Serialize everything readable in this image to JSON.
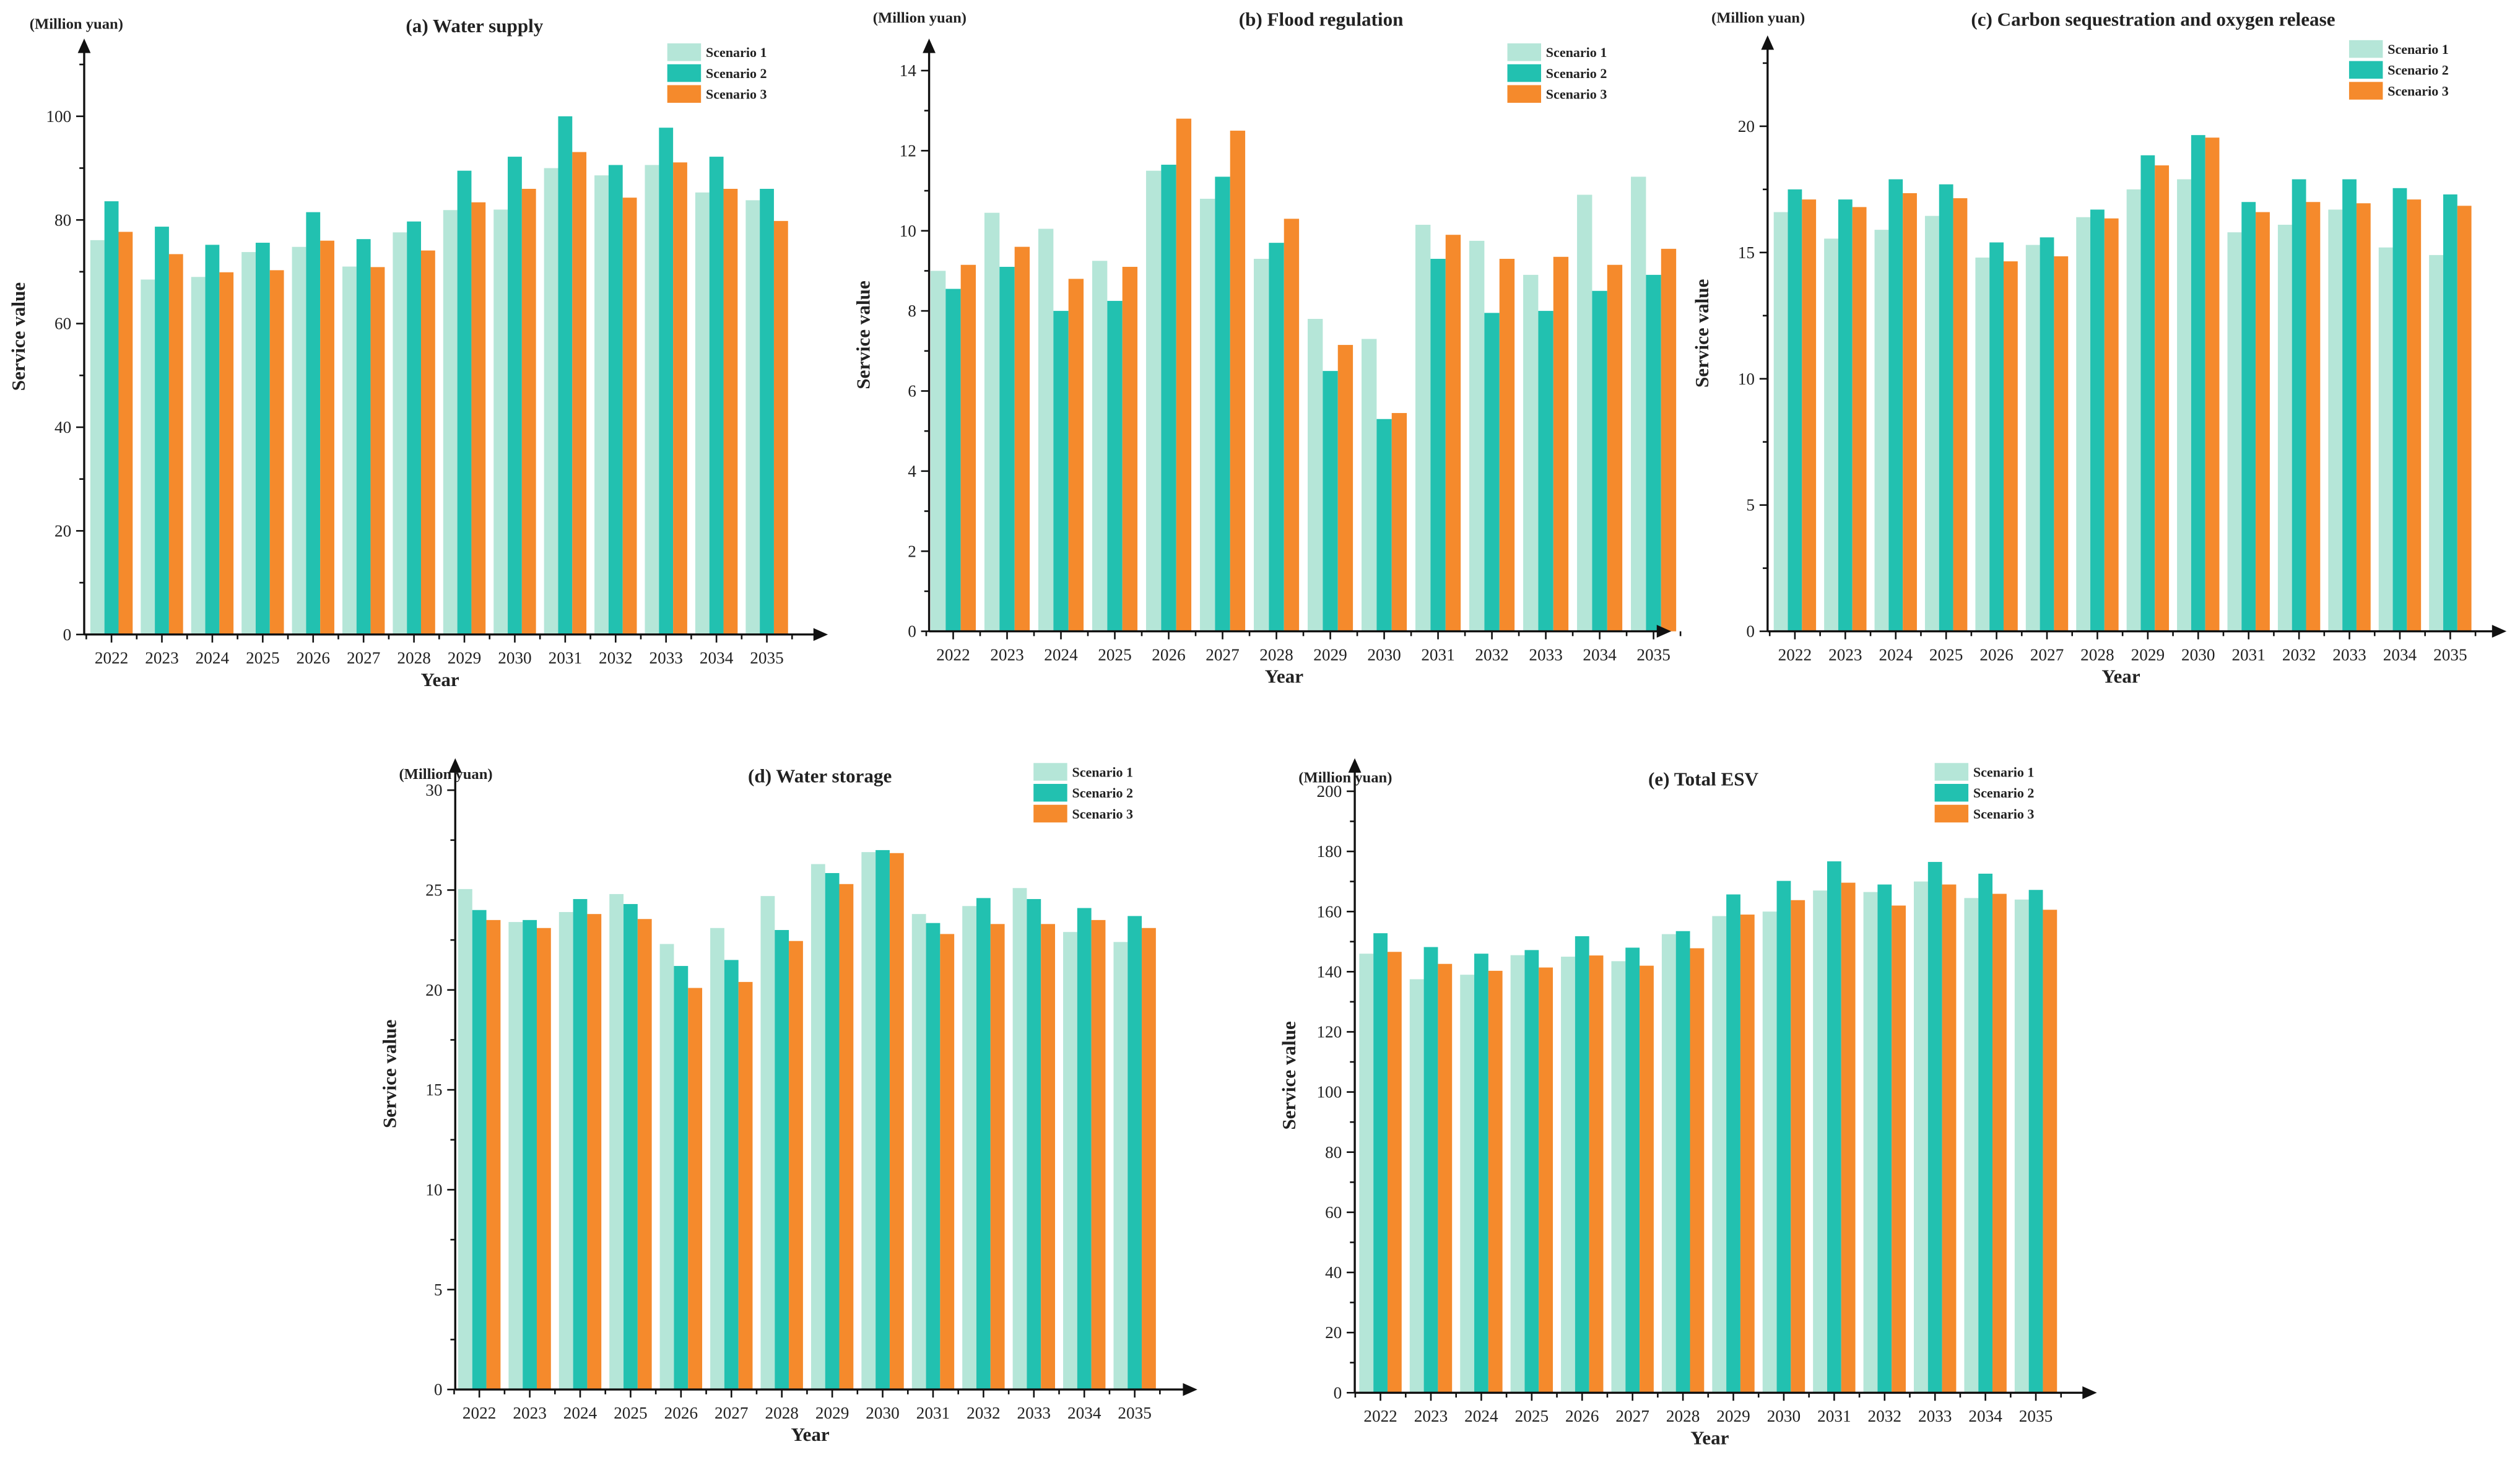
{
  "colors": {
    "Scenario 1": "#b5e6d8",
    "Scenario 2": "#22c1b0",
    "Scenario 3": "#f58a2c",
    "axis": "#111111"
  },
  "chart_data": [
    {
      "type": "bar",
      "title": "(a) Water supply",
      "unit_label": "(Million yuan)",
      "xlabel": "Year",
      "ylabel": "Service value",
      "ylim": [
        0,
        115
      ],
      "yticks": [
        0,
        20,
        40,
        60,
        80,
        100
      ],
      "minor_step": 10,
      "legend_position": "top-right",
      "categories": [
        "2022",
        "2023",
        "2024",
        "2025",
        "2026",
        "2027",
        "2028",
        "2029",
        "2030",
        "2031",
        "2032",
        "2033",
        "2034",
        "2035"
      ],
      "series": [
        {
          "name": "Scenario 1",
          "values": [
            76.1,
            68.5,
            69.0,
            73.8,
            74.8,
            71.0,
            77.6,
            81.9,
            82.0,
            90.0,
            88.6,
            90.6,
            85.3,
            83.8
          ]
        },
        {
          "name": "Scenario 2",
          "values": [
            83.6,
            78.7,
            75.2,
            75.6,
            81.5,
            76.3,
            79.7,
            89.5,
            92.2,
            100.0,
            90.6,
            97.8,
            92.2,
            86.0
          ]
        },
        {
          "name": "Scenario 3",
          "values": [
            77.7,
            73.4,
            69.9,
            70.3,
            76.0,
            70.9,
            74.1,
            83.4,
            86.0,
            93.1,
            84.3,
            91.1,
            86.0,
            79.8
          ]
        }
      ]
    },
    {
      "type": "bar",
      "title": "(b) Flood regulation",
      "unit_label": "(Million yuan)",
      "xlabel": "Year",
      "ylabel": "Service value",
      "ylim": [
        0,
        14.8
      ],
      "yticks": [
        0,
        2,
        4,
        6,
        8,
        10,
        12,
        14
      ],
      "minor_step": 1,
      "legend_position": "top-right",
      "categories": [
        "2022",
        "2023",
        "2024",
        "2025",
        "2026",
        "2027",
        "2028",
        "2029",
        "2030",
        "2031",
        "2032",
        "2033",
        "2034",
        "2035"
      ],
      "series": [
        {
          "name": "Scenario 1",
          "values": [
            9.0,
            10.45,
            10.05,
            9.25,
            11.5,
            10.8,
            9.3,
            7.8,
            7.3,
            10.15,
            9.75,
            8.9,
            10.9,
            11.35
          ]
        },
        {
          "name": "Scenario 2",
          "values": [
            8.55,
            9.1,
            8.0,
            8.25,
            11.65,
            11.35,
            9.7,
            6.5,
            5.3,
            9.3,
            7.95,
            8.0,
            8.5,
            8.9
          ]
        },
        {
          "name": "Scenario 3",
          "values": [
            9.15,
            9.6,
            8.8,
            9.1,
            12.8,
            12.5,
            10.3,
            7.15,
            5.45,
            9.9,
            9.3,
            9.35,
            9.15,
            9.55
          ]
        }
      ]
    },
    {
      "type": "bar",
      "title": "(c) Carbon sequestration and oxygen release",
      "unit_label": "(Million yuan)",
      "xlabel": "Year",
      "ylabel": "Service value",
      "ylim": [
        0,
        23.6
      ],
      "yticks": [
        0,
        5,
        10,
        15,
        20
      ],
      "minor_step": 2.5,
      "legend_position": "top-right",
      "categories": [
        "2022",
        "2023",
        "2024",
        "2025",
        "2026",
        "2027",
        "2028",
        "2029",
        "2030",
        "2031",
        "2032",
        "2033",
        "2034",
        "2035"
      ],
      "series": [
        {
          "name": "Scenario 1",
          "values": [
            16.6,
            15.55,
            15.9,
            16.45,
            14.8,
            15.3,
            16.4,
            17.5,
            17.9,
            15.8,
            16.1,
            16.7,
            15.2,
            14.9
          ]
        },
        {
          "name": "Scenario 2",
          "values": [
            17.5,
            17.1,
            17.9,
            17.7,
            15.4,
            15.6,
            16.7,
            18.85,
            19.65,
            17.0,
            17.9,
            17.9,
            17.55,
            17.3
          ]
        },
        {
          "name": "Scenario 3",
          "values": [
            17.1,
            16.8,
            17.35,
            17.15,
            14.65,
            14.85,
            16.35,
            18.45,
            19.55,
            16.6,
            17.0,
            16.95,
            17.1,
            16.85
          ]
        }
      ]
    },
    {
      "type": "bar",
      "title": "(d) Water storage",
      "unit_label": "(Million yuan)",
      "xlabel": "Year",
      "ylabel": "Service value",
      "ylim": [
        0,
        31.6
      ],
      "yticks": [
        0,
        5,
        10,
        15,
        20,
        25,
        30
      ],
      "minor_step": 2.5,
      "legend_position": "top-right",
      "categories": [
        "2022",
        "2023",
        "2024",
        "2025",
        "2026",
        "2027",
        "2028",
        "2029",
        "2030",
        "2031",
        "2032",
        "2033",
        "2034",
        "2035"
      ],
      "series": [
        {
          "name": "Scenario 1",
          "values": [
            25.05,
            23.4,
            23.9,
            24.8,
            22.3,
            23.1,
            24.7,
            26.3,
            26.9,
            23.8,
            24.2,
            25.1,
            22.9,
            22.4
          ]
        },
        {
          "name": "Scenario 2",
          "values": [
            24.0,
            23.5,
            24.55,
            24.3,
            21.2,
            21.5,
            23.0,
            25.85,
            27.0,
            23.35,
            24.6,
            24.55,
            24.1,
            23.7
          ]
        },
        {
          "name": "Scenario 3",
          "values": [
            23.5,
            23.1,
            23.8,
            23.55,
            20.1,
            20.4,
            22.45,
            25.3,
            26.85,
            22.8,
            23.3,
            23.3,
            23.5,
            23.1
          ]
        }
      ]
    },
    {
      "type": "bar",
      "title": "(e) Total ESV",
      "unit_label": "(Million yuan)",
      "xlabel": "Year",
      "ylabel": "Service value",
      "ylim": [
        0,
        211
      ],
      "yticks": [
        0,
        20,
        40,
        60,
        80,
        100,
        120,
        140,
        160,
        180,
        200
      ],
      "minor_step": 10,
      "legend_position": "top-right",
      "categories": [
        "2022",
        "2023",
        "2024",
        "2025",
        "2026",
        "2027",
        "2028",
        "2029",
        "2030",
        "2031",
        "2032",
        "2033",
        "2034",
        "2035"
      ],
      "series": [
        {
          "name": "Scenario 1",
          "values": [
            146.0,
            137.5,
            139.0,
            145.5,
            145.0,
            143.5,
            152.5,
            158.5,
            160.0,
            167.0,
            166.5,
            170.0,
            164.5,
            164.0
          ]
        },
        {
          "name": "Scenario 2",
          "values": [
            152.8,
            148.2,
            146.0,
            147.2,
            151.8,
            148.0,
            153.5,
            165.7,
            170.2,
            176.7,
            169.0,
            176.5,
            172.6,
            167.2
          ]
        },
        {
          "name": "Scenario 3",
          "values": [
            146.6,
            142.6,
            140.3,
            141.4,
            145.4,
            142.0,
            147.8,
            159.0,
            163.8,
            169.6,
            162.0,
            169.0,
            165.9,
            160.6
          ]
        }
      ]
    }
  ]
}
